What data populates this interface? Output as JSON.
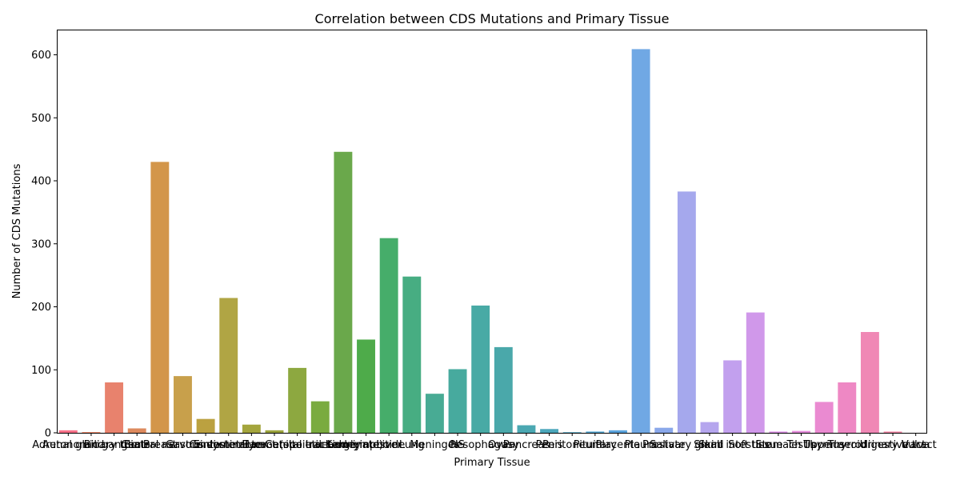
{
  "chart_data": {
    "type": "bar",
    "title": "Correlation between CDS Mutations and Primary Tissue",
    "xlabel": "Primary Tissue",
    "ylabel": "Number of CDS Mutations",
    "ylim": [
      0,
      640
    ],
    "yticks": [
      0,
      100,
      200,
      300,
      400,
      500,
      600
    ],
    "grid": false,
    "categories": [
      "Adrenal gland",
      "Autonomic ganglia",
      "Biliary tract",
      "Bone",
      "Breast",
      "Central nervous system",
      "Cervix",
      "Endometrium",
      "Eye",
      "Gastrointestinal tract (site indeterminate)",
      "Genital tract",
      "Haematopoietic and lymphoid",
      "Kidney",
      "Large intestine",
      "Liver",
      "Lung",
      "Meninges",
      "NS",
      "Oesophagus",
      "Ovary",
      "Pancreas",
      "Penis",
      "Peritoneum",
      "Pituitary",
      "Placenta",
      "Pleura",
      "Prostate",
      "Salivary gland",
      "Skin",
      "Small intestine",
      "Soft tissue",
      "Stomach",
      "Testis",
      "Thymus",
      "Thyroid",
      "Upper aerodigestive tract",
      "Urinary tract",
      "Vulva"
    ],
    "values": [
      4,
      1,
      80,
      7,
      430,
      90,
      22,
      214,
      13,
      4,
      103,
      50,
      446,
      148,
      309,
      248,
      62,
      101,
      202,
      136,
      12,
      6,
      1,
      2,
      4,
      609,
      8,
      383,
      17,
      115,
      191,
      2,
      3,
      49,
      80,
      160,
      2,
      0
    ],
    "colors": [
      "#f77189",
      "#f7754f",
      "#e8826d",
      "#dd8a5e",
      "#d3964a",
      "#c8a04b",
      "#bba140",
      "#b0a544",
      "#a4a53d",
      "#9aa33d",
      "#8da840",
      "#7aab3f",
      "#6aa84b",
      "#4eab4a",
      "#46ad6a",
      "#47ad82",
      "#48ab94",
      "#47aa9e",
      "#48aaa5",
      "#4aa8aa",
      "#4ba8b2",
      "#4ca7bb",
      "#50a6c4",
      "#54a5d0",
      "#5aa3dc",
      "#70a8e4",
      "#8aa8ea",
      "#a5a8ed",
      "#b5a6ee",
      "#c2a0ee",
      "#d098ea",
      "#dc90e6",
      "#e58cdc",
      "#ea8ad1",
      "#ee88c4",
      "#f088b5",
      "#f388a6",
      "#f58a98"
    ]
  }
}
